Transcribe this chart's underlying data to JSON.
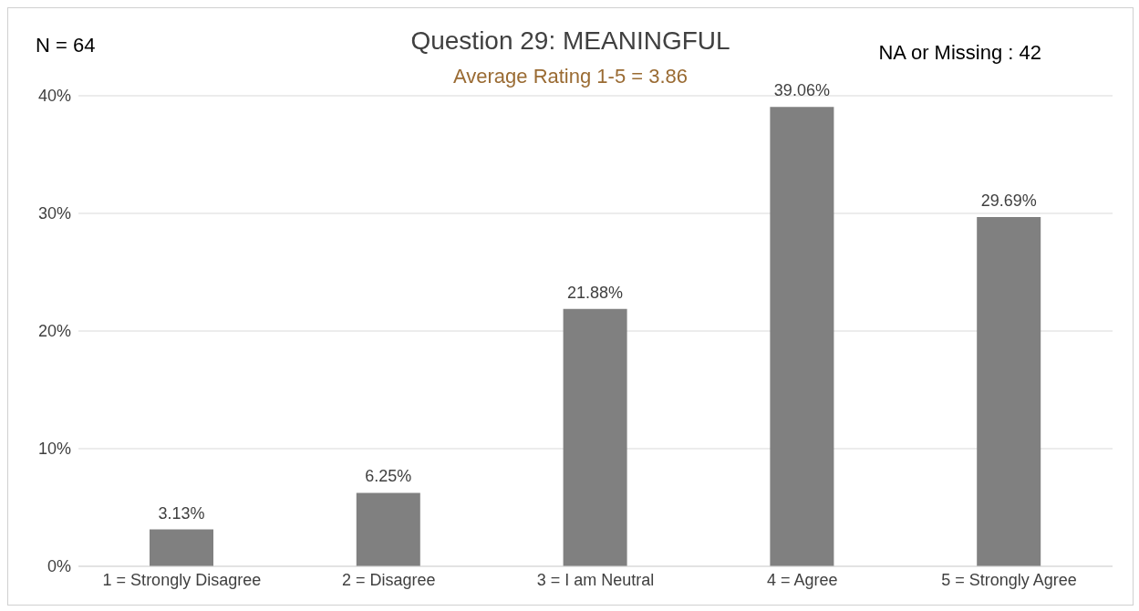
{
  "chart_data": {
    "type": "bar",
    "title": "Question 29: MEANINGFUL",
    "subtitle": "Average Rating 1-5 = 3.86",
    "annotations": [
      "N = 64",
      "NA or Missing : 42"
    ],
    "categories": [
      "1 = Strongly Disagree",
      "2 = Disagree",
      "3 = I am Neutral",
      "4 = Agree",
      "5 = Strongly Agree"
    ],
    "values": [
      3.13,
      6.25,
      21.88,
      39.06,
      29.69
    ],
    "value_labels": [
      "3.13%",
      "6.25%",
      "21.88%",
      "39.06%",
      "29.69%"
    ],
    "color": "#808080",
    "ylim": [
      0,
      40
    ],
    "yticks": [
      {
        "value": 0,
        "label": "0%"
      },
      {
        "value": 10,
        "label": "10%"
      },
      {
        "value": 20,
        "label": "20%"
      },
      {
        "value": 30,
        "label": "30%"
      },
      {
        "value": 40,
        "label": "40%"
      }
    ],
    "grid": "y",
    "legend": false
  }
}
